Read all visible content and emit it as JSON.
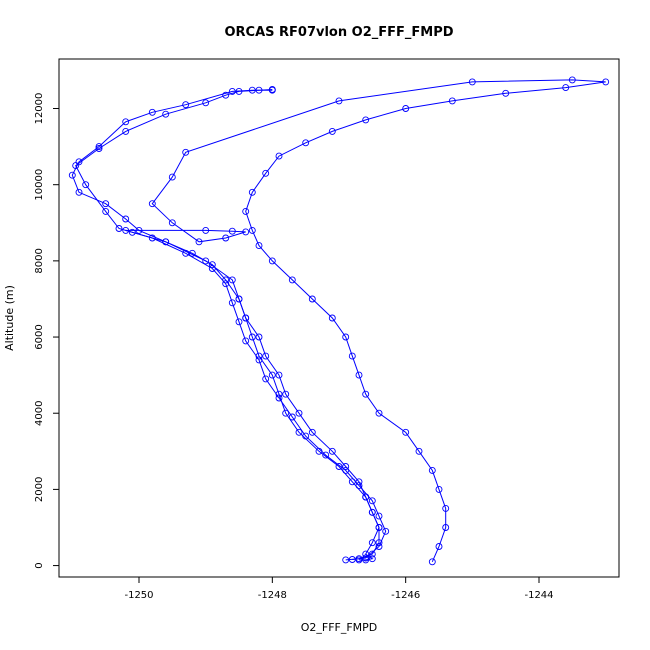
{
  "chart_data": {
    "type": "line",
    "title": "ORCAS RF07vlon O2_FFF_FMPD",
    "xlabel": "O2_FFF_FMPD",
    "ylabel": "Altitude (m)",
    "xlim": [
      -1251.2,
      -1242.8
    ],
    "ylim": [
      -300,
      13300
    ],
    "x_ticks": [
      -1250,
      -1248,
      -1246,
      -1244
    ],
    "x_tick_labels": [
      "-1250",
      "-1248",
      "-1246",
      "-1244"
    ],
    "y_ticks": [
      0,
      2000,
      4000,
      6000,
      8000,
      10000,
      12000
    ],
    "y_tick_labels": [
      "0",
      "2000",
      "4000",
      "6000",
      "8000",
      "10000",
      "12000"
    ],
    "grid": false,
    "marker": "open-circle",
    "color": "#0000ff",
    "series": [
      {
        "points": [
          [
            -1246.7,
            150
          ],
          [
            -1246.6,
            150
          ],
          [
            -1246.5,
            180
          ],
          [
            -1246.6,
            300
          ],
          [
            -1246.5,
            600
          ],
          [
            -1246.4,
            1000
          ],
          [
            -1246.5,
            1400
          ],
          [
            -1246.6,
            1800
          ],
          [
            -1246.8,
            2200
          ],
          [
            -1247.0,
            2600
          ],
          [
            -1247.3,
            3000
          ],
          [
            -1247.6,
            3500
          ],
          [
            -1247.8,
            4000
          ],
          [
            -1247.9,
            4500
          ],
          [
            -1248.0,
            5000
          ],
          [
            -1248.2,
            5500
          ],
          [
            -1248.3,
            6000
          ],
          [
            -1248.4,
            6500
          ],
          [
            -1248.5,
            7000
          ],
          [
            -1248.6,
            7500
          ],
          [
            -1249.0,
            8000
          ],
          [
            -1249.6,
            8500
          ],
          [
            -1250.1,
            8750
          ],
          [
            -1250.3,
            8850
          ],
          [
            -1250.5,
            9300
          ],
          [
            -1250.8,
            10000
          ],
          [
            -1250.95,
            10500
          ],
          [
            -1250.6,
            10950
          ],
          [
            -1250.2,
            11400
          ],
          [
            -1249.6,
            11850
          ],
          [
            -1249.0,
            12150
          ],
          [
            -1248.7,
            12350
          ],
          [
            -1248.5,
            12450
          ],
          [
            -1248.2,
            12480
          ],
          [
            -1248.0,
            12500
          ]
        ]
      },
      {
        "points": [
          [
            -1248.0,
            12480
          ],
          [
            -1248.3,
            12480
          ],
          [
            -1248.6,
            12450
          ],
          [
            -1249.3,
            12100
          ],
          [
            -1249.8,
            11900
          ],
          [
            -1250.2,
            11650
          ],
          [
            -1250.6,
            11000
          ],
          [
            -1250.9,
            10600
          ],
          [
            -1251.0,
            10250
          ],
          [
            -1250.9,
            9800
          ],
          [
            -1250.5,
            9500
          ],
          [
            -1250.2,
            9100
          ],
          [
            -1250.0,
            8800
          ],
          [
            -1249.6,
            8500
          ],
          [
            -1249.2,
            8200
          ],
          [
            -1248.9,
            7900
          ],
          [
            -1248.7,
            7500
          ],
          [
            -1248.5,
            7000
          ],
          [
            -1248.4,
            6500
          ],
          [
            -1248.2,
            6000
          ],
          [
            -1248.1,
            5500
          ],
          [
            -1247.9,
            5000
          ],
          [
            -1247.8,
            4500
          ],
          [
            -1247.6,
            4000
          ],
          [
            -1247.4,
            3500
          ],
          [
            -1247.1,
            3000
          ],
          [
            -1246.9,
            2600
          ],
          [
            -1246.7,
            2200
          ],
          [
            -1246.6,
            1800
          ],
          [
            -1246.5,
            1400
          ],
          [
            -1246.4,
            1000
          ],
          [
            -1246.4,
            600
          ],
          [
            -1246.5,
            300
          ],
          [
            -1246.7,
            180
          ],
          [
            -1246.9,
            150
          ]
        ]
      },
      {
        "points": [
          [
            -1246.8,
            160
          ],
          [
            -1246.6,
            200
          ],
          [
            -1246.4,
            500
          ],
          [
            -1246.3,
            900
          ],
          [
            -1246.4,
            1300
          ],
          [
            -1246.5,
            1700
          ],
          [
            -1246.7,
            2100
          ],
          [
            -1246.9,
            2500
          ],
          [
            -1247.2,
            2900
          ],
          [
            -1247.5,
            3400
          ],
          [
            -1247.7,
            3900
          ],
          [
            -1247.9,
            4400
          ],
          [
            -1248.1,
            4900
          ],
          [
            -1248.2,
            5400
          ],
          [
            -1248.4,
            5900
          ],
          [
            -1248.5,
            6400
          ],
          [
            -1248.6,
            6900
          ],
          [
            -1248.7,
            7400
          ],
          [
            -1248.9,
            7800
          ],
          [
            -1249.3,
            8200
          ],
          [
            -1249.8,
            8600
          ],
          [
            -1250.2,
            8800
          ],
          [
            -1249.0,
            8800
          ],
          [
            -1248.6,
            8780
          ],
          [
            -1248.4,
            8760
          ],
          [
            -1248.7,
            8600
          ],
          [
            -1249.1,
            8500
          ],
          [
            -1249.5,
            9000
          ],
          [
            -1249.8,
            9500
          ],
          [
            -1249.5,
            10200
          ],
          [
            -1249.3,
            10850
          ],
          [
            -1247.0,
            12200
          ],
          [
            -1245.0,
            12700
          ],
          [
            -1243.5,
            12750
          ],
          [
            -1243.0,
            12700
          ],
          [
            -1243.6,
            12550
          ],
          [
            -1244.5,
            12400
          ],
          [
            -1245.3,
            12200
          ],
          [
            -1246.0,
            12000
          ],
          [
            -1246.6,
            11700
          ],
          [
            -1247.1,
            11400
          ],
          [
            -1247.5,
            11100
          ],
          [
            -1247.9,
            10750
          ],
          [
            -1248.1,
            10300
          ],
          [
            -1248.3,
            9800
          ],
          [
            -1248.4,
            9300
          ],
          [
            -1248.3,
            8800
          ],
          [
            -1248.2,
            8400
          ],
          [
            -1248.0,
            8000
          ],
          [
            -1247.7,
            7500
          ],
          [
            -1247.4,
            7000
          ],
          [
            -1247.1,
            6500
          ],
          [
            -1246.9,
            6000
          ],
          [
            -1246.8,
            5500
          ],
          [
            -1246.7,
            5000
          ],
          [
            -1246.6,
            4500
          ],
          [
            -1246.4,
            4000
          ],
          [
            -1246.0,
            3500
          ],
          [
            -1245.8,
            3000
          ],
          [
            -1245.6,
            2500
          ],
          [
            -1245.5,
            2000
          ],
          [
            -1245.4,
            1500
          ],
          [
            -1245.4,
            1000
          ],
          [
            -1245.5,
            500
          ],
          [
            -1245.6,
            100
          ]
        ]
      }
    ]
  }
}
